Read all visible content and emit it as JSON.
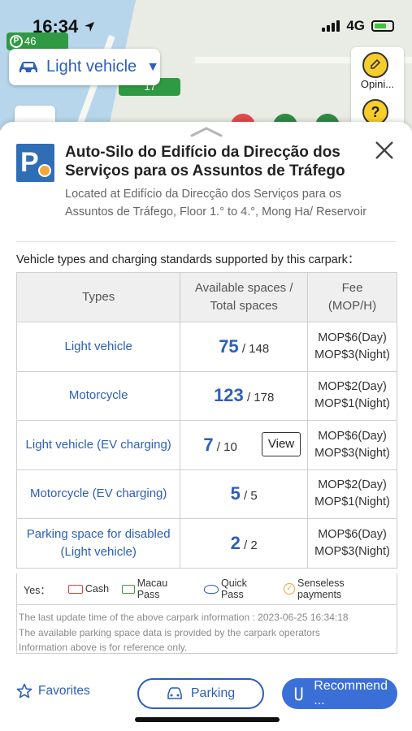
{
  "status_bar": {
    "time": "16:34",
    "network": "4G"
  },
  "map": {
    "pin1_label": "46",
    "pin1_icon": "P",
    "pin2_label": "17",
    "vehicle_selector": {
      "label": "Light vehicle",
      "icon": "car-icon"
    },
    "side_tool": {
      "opinion_label": "Opini...",
      "help_label": "?"
    },
    "circle_colors": [
      "#e24a4a",
      "#2f8a43",
      "#2f8a43",
      "#49b04b"
    ]
  },
  "carpark": {
    "logo_letter": "P",
    "title": "Auto-Silo do Edifício da Direcção dos Serviços para os Assuntos de Tráfego",
    "close_label": "✕",
    "address": "Located at Edifício da Direcção dos Serviços para os Assuntos de Tráfego, Floor 1.° to 4.°, Mong Ha/ Reservoir"
  },
  "section_title": "Vehicle types and charging standards supported by this carpark：",
  "table": {
    "headers": {
      "types": "Types",
      "spaces": "Available spaces / Total spaces",
      "fee": "Fee (MOP/H)"
    },
    "rows": [
      {
        "type": "Light vehicle",
        "available": "75",
        "total": " / 148",
        "fee_day": "MOP$6(Day)",
        "fee_night": "MOP$3(Night)"
      },
      {
        "type": "Motorcycle",
        "available": "123",
        "total": " / 178",
        "fee_day": "MOP$2(Day)",
        "fee_night": "MOP$1(Night)"
      },
      {
        "type": "Light vehicle (EV charging)",
        "available": "7",
        "total": " / 10",
        "fee_day": "MOP$6(Day)",
        "fee_night": "MOP$3(Night)",
        "view_label": "View"
      },
      {
        "type": "Motorcycle (EV charging)",
        "available": "5",
        "total": " / 5",
        "fee_day": "MOP$2(Day)",
        "fee_night": "MOP$1(Night)"
      },
      {
        "type": "Parking space for disabled (Light vehicle)",
        "available": "2",
        "total": " / 2",
        "fee_day": "MOP$6(Day)",
        "fee_night": "MOP$3(Night)"
      }
    ]
  },
  "legend": {
    "yes": "Yes：",
    "cash": "Cash",
    "macau_pass": "Macau Pass",
    "quick_pass": "Quick Pass",
    "senseless": "Senseless payments"
  },
  "info": {
    "line1": "The last update time of the above carpark information : 2023-06-25 16:34:18",
    "line2": "The available parking space data is provided by the carpark operators",
    "line3": "Information above is for reference only."
  },
  "bottom": {
    "favorites": "Favorites",
    "parking": "Parking",
    "recommend": "Recommend ..."
  },
  "colors": {
    "accent": "#2c5fb8",
    "recommend_bg": "#3a6fd8",
    "pin_green": "#2f9a43"
  }
}
